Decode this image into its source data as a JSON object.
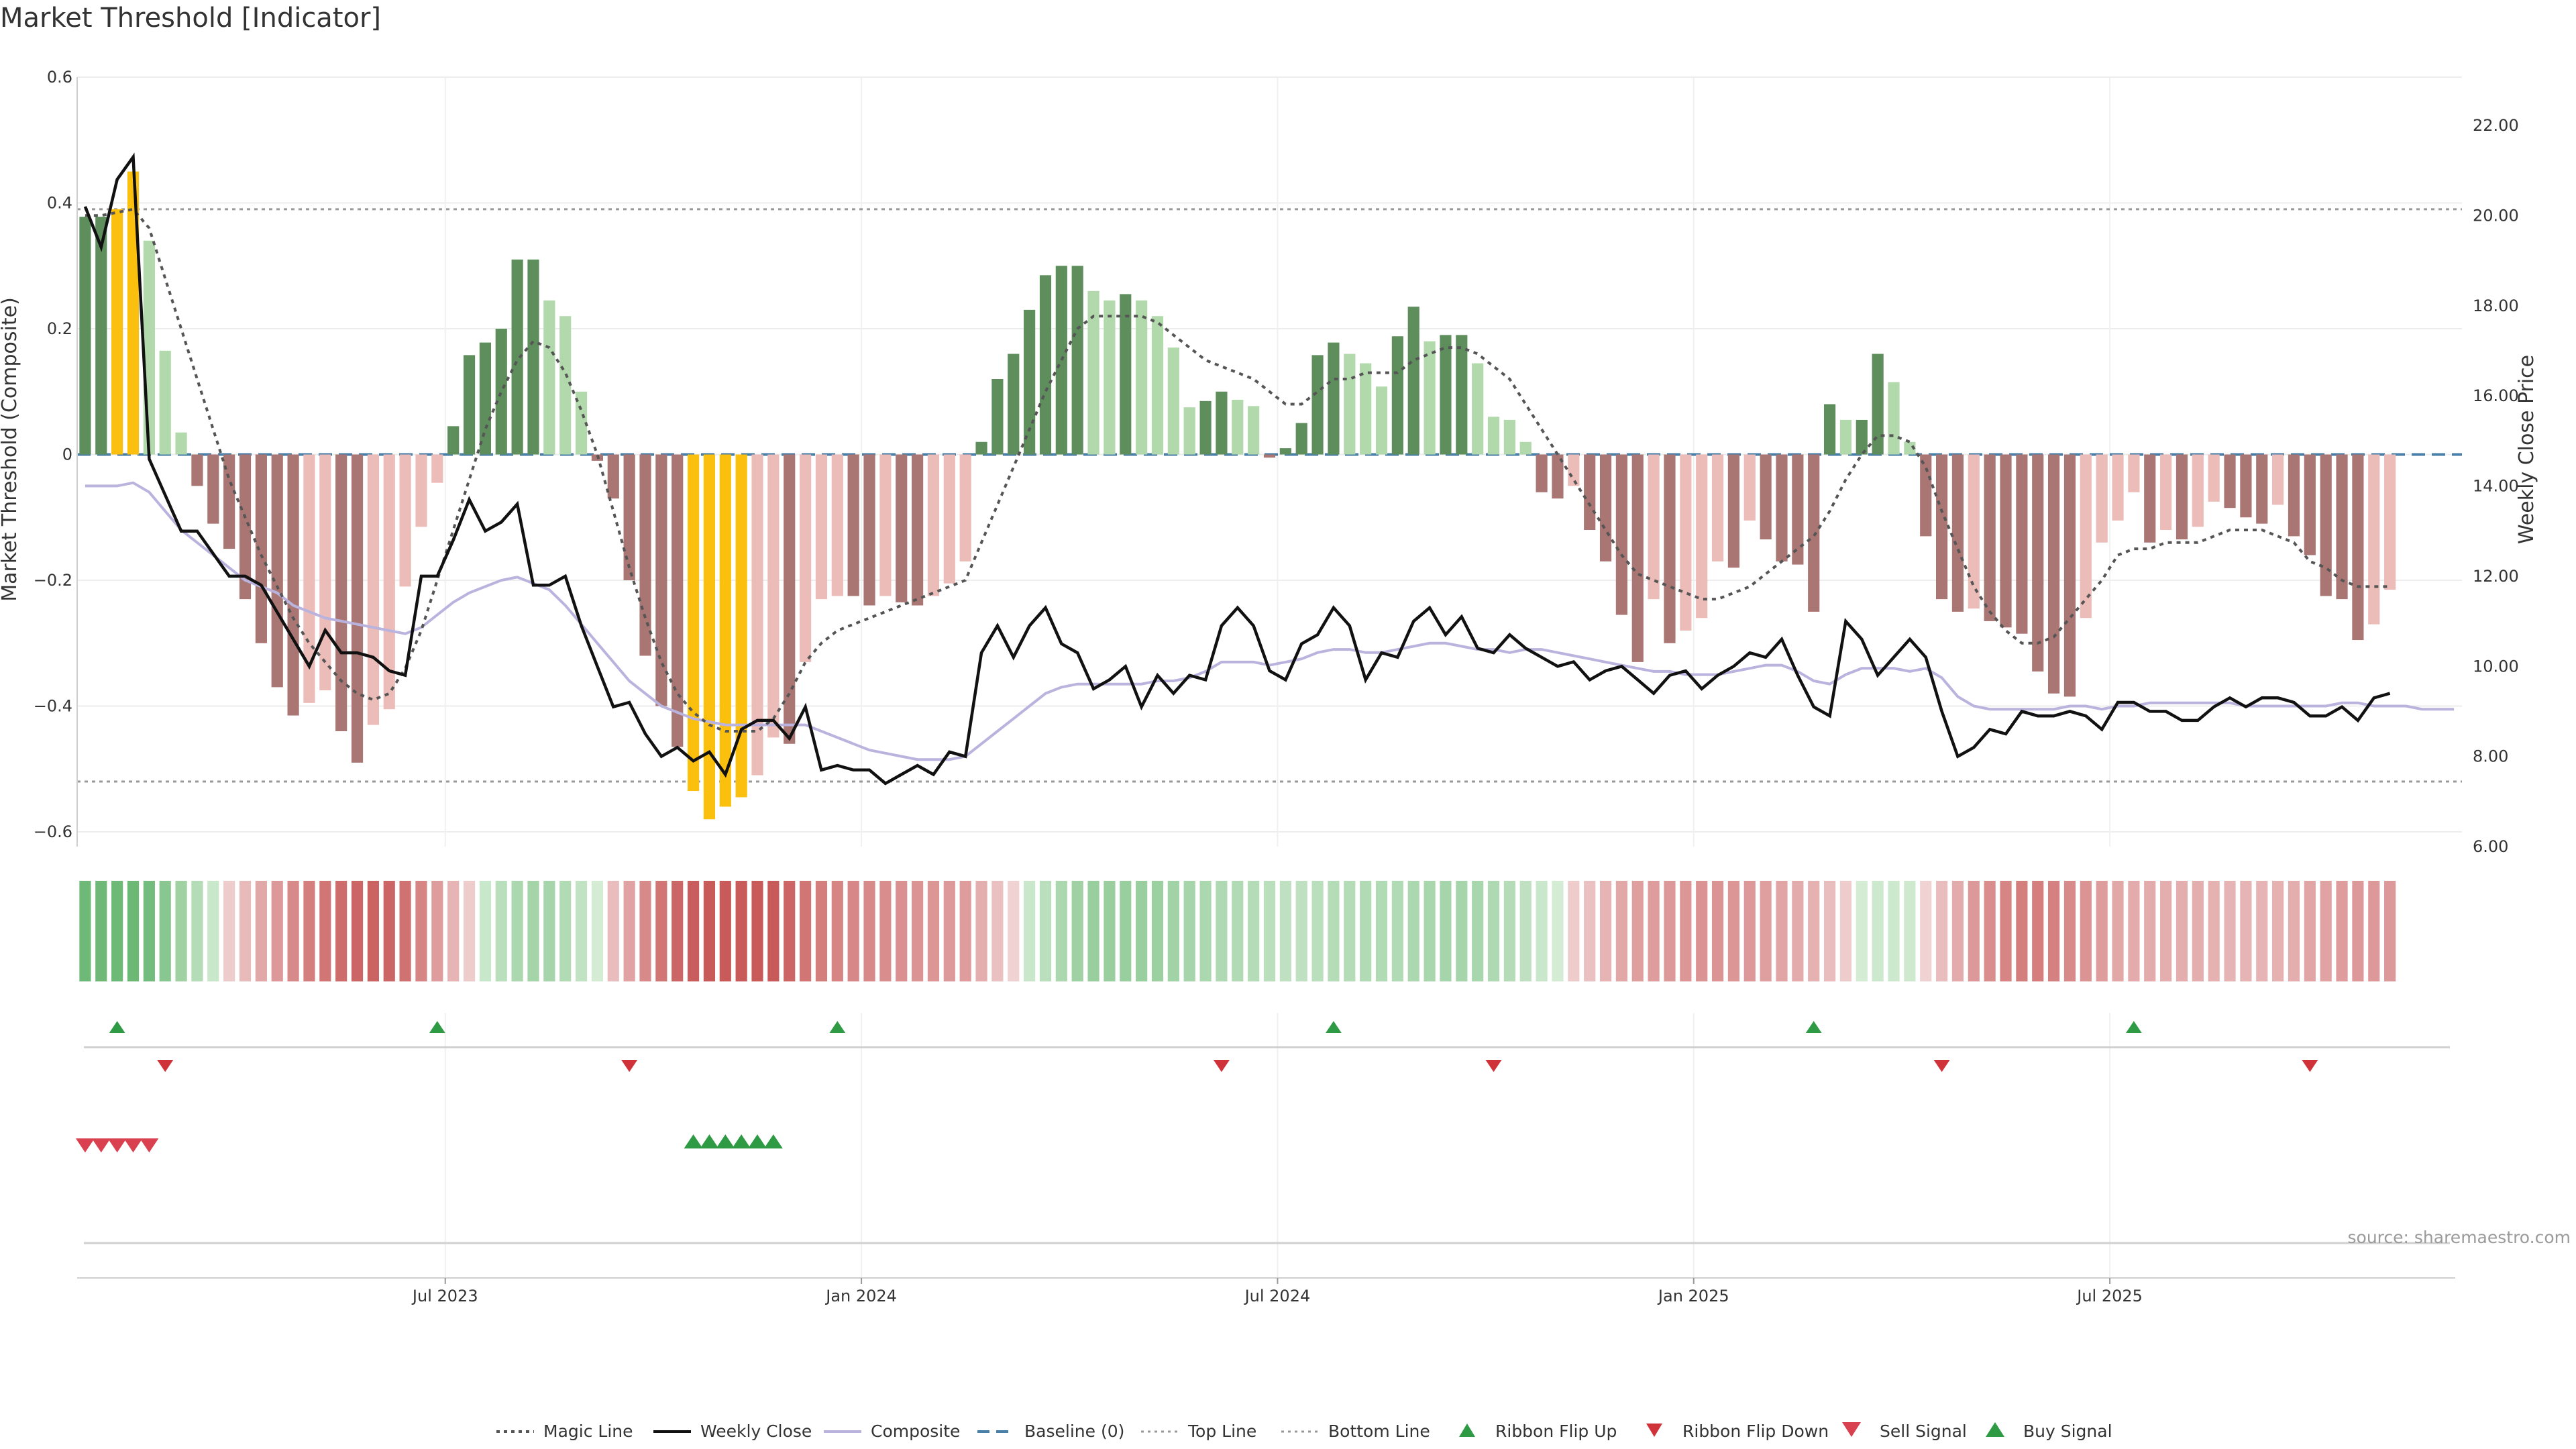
{
  "title": "Market Threshold [Indicator]",
  "source": "source: sharemaestro.com",
  "chart_data": {
    "type": "bar",
    "y_left": {
      "label": "Market Threshold (Composite)",
      "range": [
        -0.63,
        0.6
      ],
      "ticks": [
        "0.6",
        "0.4",
        "0.2",
        "0",
        "−0.2",
        "−0.4",
        "−0.6"
      ],
      "tick_values": [
        0.6,
        0.4,
        0.2,
        0,
        -0.2,
        -0.4,
        -0.6
      ]
    },
    "y_right": {
      "label": "Weekly Close Price",
      "range": [
        6.0,
        23.0
      ],
      "ticks": [
        "22.00",
        "20.00",
        "18.00",
        "16.00",
        "14.00",
        "12.00",
        "10.00",
        "8.00",
        "6.00"
      ],
      "tick_values": [
        22,
        20,
        18,
        16,
        14,
        12,
        10,
        8,
        6
      ]
    },
    "x_axis": {
      "start": "2023-01-06",
      "weeks": 149,
      "ticks": [
        {
          "label": "Jul 2023",
          "week": 23
        },
        {
          "label": "Jan 2024",
          "week": 49
        },
        {
          "label": "Jul 2024",
          "week": 75
        },
        {
          "label": "Jan 2025",
          "week": 101
        },
        {
          "label": "Jul 2025",
          "week": 127
        }
      ]
    },
    "top_line": 0.39,
    "bottom_line": -0.52,
    "baseline": 0,
    "composite_bars": [
      0.378,
      0.378,
      0.39,
      0.45,
      0.34,
      0.165,
      0.035,
      -0.05,
      -0.11,
      -0.15,
      -0.23,
      -0.3,
      -0.37,
      -0.415,
      -0.395,
      -0.375,
      -0.44,
      -0.49,
      -0.43,
      -0.405,
      -0.21,
      -0.115,
      -0.045,
      0.045,
      0.158,
      0.178,
      0.2,
      0.31,
      0.31,
      0.245,
      0.22,
      0.1,
      -0.01,
      -0.07,
      -0.2,
      -0.32,
      -0.4,
      -0.465,
      -0.535,
      -0.58,
      -0.56,
      -0.545,
      -0.51,
      -0.45,
      -0.46,
      -0.33,
      -0.23,
      -0.225,
      -0.225,
      -0.24,
      -0.225,
      -0.235,
      -0.24,
      -0.225,
      -0.205,
      -0.17,
      0.02,
      0.12,
      0.16,
      0.23,
      0.285,
      0.3,
      0.3,
      0.26,
      0.245,
      0.255,
      0.245,
      0.22,
      0.17,
      0.075,
      0.085,
      0.1,
      0.087,
      0.077,
      -0.005,
      0.01,
      0.05,
      0.158,
      0.178,
      0.16,
      0.145,
      0.108,
      0.188,
      0.235,
      0.18,
      0.19,
      0.19,
      0.145,
      0.06,
      0.055,
      0.02,
      -0.06,
      -0.07,
      -0.05,
      -0.12,
      -0.17,
      -0.255,
      -0.33,
      -0.23,
      -0.3,
      -0.28,
      -0.26,
      -0.17,
      -0.18,
      -0.105,
      -0.135,
      -0.17,
      -0.175,
      -0.25,
      0.08,
      0.055,
      0.055,
      0.16,
      0.115,
      0.02,
      -0.13,
      -0.23,
      -0.25,
      -0.245,
      -0.265,
      -0.275,
      -0.285,
      -0.345,
      -0.38,
      -0.385,
      -0.26,
      -0.14,
      -0.105,
      -0.06,
      -0.14,
      -0.12,
      -0.135,
      -0.115,
      -0.075,
      -0.085,
      -0.1,
      -0.11,
      -0.08,
      -0.13,
      -0.16,
      -0.225,
      -0.23,
      -0.295,
      -0.27,
      -0.215
    ],
    "weekly_close": [
      20.2,
      19.3,
      20.8,
      21.3,
      14.6,
      13.8,
      13.0,
      13.0,
      12.5,
      12.0,
      12.0,
      11.8,
      11.2,
      10.6,
      10.0,
      10.8,
      10.3,
      10.3,
      10.2,
      9.9,
      9.8,
      12.0,
      12.0,
      12.8,
      13.7,
      13.0,
      13.2,
      13.6,
      11.8,
      11.8,
      12.0,
      10.9,
      10.0,
      9.1,
      9.2,
      8.5,
      8.0,
      8.2,
      7.9,
      8.1,
      7.6,
      8.6,
      8.8,
      8.8,
      8.4,
      9.1,
      7.7,
      7.8,
      7.7,
      7.7,
      7.4,
      7.6,
      7.8,
      7.6,
      8.1,
      8.0,
      10.3,
      10.9,
      10.2,
      10.9,
      11.3,
      10.5,
      10.3,
      9.5,
      9.7,
      10.0,
      9.1,
      9.8,
      9.4,
      9.8,
      9.7,
      10.9,
      11.3,
      10.9,
      9.9,
      9.7,
      10.5,
      10.7,
      11.3,
      10.9,
      9.7,
      10.3,
      10.2,
      11.0,
      11.3,
      10.7,
      11.1,
      10.4,
      10.3,
      10.7,
      10.4,
      10.2,
      10.0,
      10.1,
      9.7,
      9.9,
      10.0,
      9.7,
      9.4,
      9.8,
      9.9,
      9.5,
      9.8,
      10.0,
      10.3,
      10.2,
      10.6,
      9.8,
      9.1,
      8.9,
      11.0,
      10.6,
      9.8,
      10.2,
      10.6,
      10.2,
      9.0,
      8.0,
      8.2,
      8.6,
      8.5,
      9.0,
      8.9,
      8.9,
      9.0,
      8.9,
      8.6,
      9.2,
      9.2,
      9.0,
      9.0,
      8.8,
      8.8,
      9.1,
      9.3,
      9.1,
      9.3,
      9.3,
      9.2,
      8.9,
      8.9,
      9.1,
      8.8,
      9.3,
      9.4
    ],
    "composite_line": [
      -0.05,
      -0.05,
      -0.05,
      -0.045,
      -0.06,
      -0.09,
      -0.12,
      -0.14,
      -0.16,
      -0.18,
      -0.2,
      -0.21,
      -0.22,
      -0.24,
      -0.25,
      -0.26,
      -0.265,
      -0.27,
      -0.275,
      -0.28,
      -0.285,
      -0.275,
      -0.255,
      -0.235,
      -0.22,
      -0.21,
      -0.2,
      -0.195,
      -0.205,
      -0.215,
      -0.24,
      -0.27,
      -0.3,
      -0.33,
      -0.36,
      -0.38,
      -0.4,
      -0.41,
      -0.42,
      -0.425,
      -0.43,
      -0.43,
      -0.43,
      -0.43,
      -0.43,
      -0.43,
      -0.44,
      -0.45,
      -0.46,
      -0.47,
      -0.475,
      -0.48,
      -0.485,
      -0.485,
      -0.485,
      -0.48,
      -0.46,
      -0.44,
      -0.42,
      -0.4,
      -0.38,
      -0.37,
      -0.365,
      -0.365,
      -0.365,
      -0.365,
      -0.365,
      -0.36,
      -0.36,
      -0.355,
      -0.345,
      -0.33,
      -0.33,
      -0.33,
      -0.335,
      -0.33,
      -0.325,
      -0.315,
      -0.31,
      -0.31,
      -0.315,
      -0.315,
      -0.31,
      -0.305,
      -0.3,
      -0.3,
      -0.305,
      -0.31,
      -0.31,
      -0.315,
      -0.31,
      -0.31,
      -0.315,
      -0.32,
      -0.325,
      -0.33,
      -0.335,
      -0.34,
      -0.345,
      -0.345,
      -0.35,
      -0.35,
      -0.35,
      -0.345,
      -0.34,
      -0.335,
      -0.335,
      -0.345,
      -0.36,
      -0.365,
      -0.35,
      -0.34,
      -0.34,
      -0.34,
      -0.345,
      -0.34,
      -0.355,
      -0.385,
      -0.4,
      -0.405,
      -0.405,
      -0.405,
      -0.405,
      -0.405,
      -0.4,
      -0.4,
      -0.405,
      -0.4,
      -0.4,
      -0.395,
      -0.395,
      -0.395,
      -0.395,
      -0.395,
      -0.395,
      -0.4,
      -0.4,
      -0.4,
      -0.4,
      -0.4,
      -0.4,
      -0.395,
      -0.395,
      -0.4,
      -0.4,
      -0.4,
      -0.405,
      -0.405,
      -0.405
    ],
    "magic_line": [
      0.38,
      0.38,
      0.385,
      0.39,
      0.36,
      0.28,
      0.2,
      0.12,
      0.04,
      -0.04,
      -0.1,
      -0.16,
      -0.21,
      -0.26,
      -0.3,
      -0.33,
      -0.36,
      -0.38,
      -0.39,
      -0.38,
      -0.34,
      -0.28,
      -0.2,
      -0.12,
      -0.04,
      0.04,
      0.1,
      0.15,
      0.18,
      0.17,
      0.13,
      0.07,
      0.0,
      -0.09,
      -0.18,
      -0.26,
      -0.33,
      -0.38,
      -0.41,
      -0.43,
      -0.44,
      -0.44,
      -0.44,
      -0.42,
      -0.38,
      -0.33,
      -0.3,
      -0.28,
      -0.27,
      -0.26,
      -0.25,
      -0.24,
      -0.23,
      -0.22,
      -0.21,
      -0.2,
      -0.14,
      -0.08,
      -0.02,
      0.04,
      0.1,
      0.15,
      0.2,
      0.22,
      0.22,
      0.22,
      0.22,
      0.21,
      0.19,
      0.17,
      0.15,
      0.14,
      0.13,
      0.12,
      0.1,
      0.08,
      0.08,
      0.1,
      0.12,
      0.12,
      0.13,
      0.13,
      0.13,
      0.15,
      0.16,
      0.17,
      0.17,
      0.16,
      0.14,
      0.12,
      0.08,
      0.04,
      0.0,
      -0.04,
      -0.08,
      -0.12,
      -0.16,
      -0.19,
      -0.2,
      -0.21,
      -0.22,
      -0.23,
      -0.23,
      -0.22,
      -0.21,
      -0.19,
      -0.17,
      -0.15,
      -0.13,
      -0.09,
      -0.04,
      0.0,
      0.03,
      0.03,
      0.02,
      -0.02,
      -0.09,
      -0.15,
      -0.21,
      -0.25,
      -0.28,
      -0.3,
      -0.3,
      -0.29,
      -0.26,
      -0.23,
      -0.2,
      -0.16,
      -0.15,
      -0.15,
      -0.14,
      -0.14,
      -0.14,
      -0.13,
      -0.12,
      -0.12,
      -0.12,
      -0.13,
      -0.14,
      -0.17,
      -0.18,
      -0.2,
      -0.21,
      -0.21,
      -0.21
    ],
    "ribbon_flip_up_weeks": [
      2,
      22,
      47,
      78,
      108,
      128
    ],
    "ribbon_flip_down_weeks": [
      5,
      34,
      71,
      88,
      116,
      139
    ],
    "sell_signal_weeks": [
      0,
      1,
      2,
      3,
      4
    ],
    "buy_signal_weeks": [
      38,
      39,
      40,
      41,
      42,
      43
    ],
    "legend": {
      "placement": "bottom-center",
      "items": [
        {
          "key": "magic",
          "label": "Magic Line"
        },
        {
          "key": "close",
          "label": "Weekly Close"
        },
        {
          "key": "composite",
          "label": "Composite"
        },
        {
          "key": "baseline",
          "label": "Baseline (0)"
        },
        {
          "key": "top",
          "label": "Top Line"
        },
        {
          "key": "bottom",
          "label": "Bottom Line"
        },
        {
          "key": "flipup",
          "label": "Ribbon Flip Up"
        },
        {
          "key": "flipdown",
          "label": "Ribbon Flip Down"
        },
        {
          "key": "sell",
          "label": "Sell Signal"
        },
        {
          "key": "buy",
          "label": "Buy Signal"
        }
      ]
    },
    "colors": {
      "extreme": "#fbbf0e",
      "pos_strong": "#5e8e5c",
      "pos_light": "#b1d9ab",
      "neg_strong": "#a97673",
      "neg_light": "#ecbcb8",
      "close": "#111111",
      "composite": "#b9b3de",
      "magic": "#555555",
      "baseline": "#4a7fa8",
      "guide": "#999999",
      "flip_up": "#2e9a44",
      "flip_down": "#d0323a",
      "sell": "#d94050",
      "buy": "#2e9a44"
    }
  }
}
